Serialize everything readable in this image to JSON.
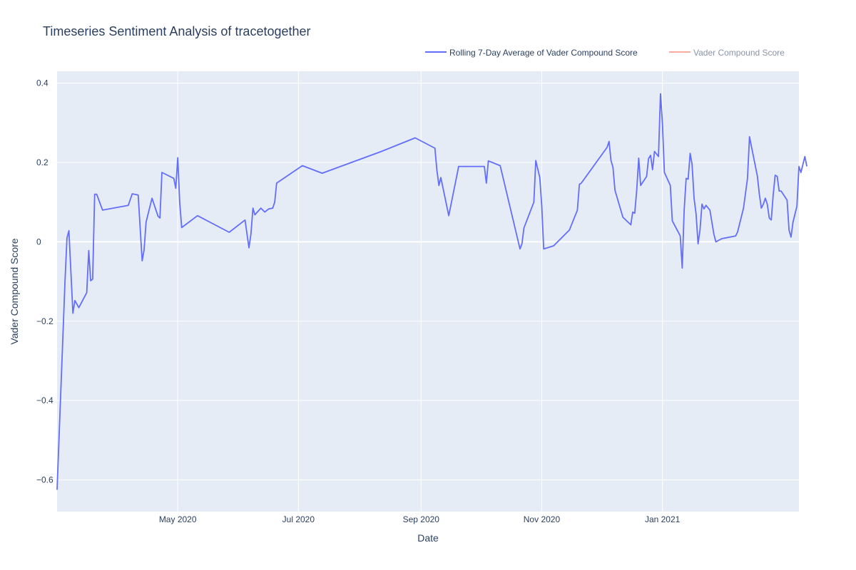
{
  "chart_data": {
    "type": "line",
    "title": "Timeseries Sentiment Analysis of tracetogether",
    "xlabel": "Date",
    "ylabel": "Vader Compound Score",
    "xlim": [
      "2020-03-01",
      "2021-03-11"
    ],
    "ylim": [
      -0.68,
      0.43
    ],
    "x_ticks": [
      {
        "date": "2020-05-01",
        "label": "May 2020"
      },
      {
        "date": "2020-07-01",
        "label": "Jul 2020"
      },
      {
        "date": "2020-09-01",
        "label": "Sep 2020"
      },
      {
        "date": "2020-11-01",
        "label": "Nov 2020"
      },
      {
        "date": "2021-01-01",
        "label": "Jan 2021"
      }
    ],
    "y_ticks": [
      {
        "value": 0.4,
        "label": "0.4"
      },
      {
        "value": 0.2,
        "label": "0.2"
      },
      {
        "value": 0,
        "label": "0"
      },
      {
        "value": -0.2,
        "label": "−0.2"
      },
      {
        "value": -0.4,
        "label": "−0.4"
      },
      {
        "value": -0.6,
        "label": "−0.6"
      }
    ],
    "grid": true,
    "legend_position": "top-right",
    "series": [
      {
        "name": "Rolling 7-Day Average of Vader Compound Score",
        "color": "#636efa",
        "visible": true,
        "points": [
          [
            "2020-03-01",
            -0.625
          ],
          [
            "2020-03-05",
            -0.1
          ],
          [
            "2020-03-06",
            0.01
          ],
          [
            "2020-03-07",
            0.028
          ],
          [
            "2020-03-09",
            -0.18
          ],
          [
            "2020-03-10",
            -0.148
          ],
          [
            "2020-03-12",
            -0.166
          ],
          [
            "2020-03-16",
            -0.128
          ],
          [
            "2020-03-17",
            -0.022
          ],
          [
            "2020-03-18",
            -0.098
          ],
          [
            "2020-03-19",
            -0.094
          ],
          [
            "2020-03-20",
            0.12
          ],
          [
            "2020-03-21",
            0.12
          ],
          [
            "2020-03-24",
            0.08
          ],
          [
            "2020-04-06",
            0.092
          ],
          [
            "2020-04-08",
            0.121
          ],
          [
            "2020-04-11",
            0.118
          ],
          [
            "2020-04-13",
            -0.048
          ],
          [
            "2020-04-14",
            -0.02
          ],
          [
            "2020-04-15",
            0.05
          ],
          [
            "2020-04-18",
            0.11
          ],
          [
            "2020-04-21",
            0.065
          ],
          [
            "2020-04-22",
            0.06
          ],
          [
            "2020-04-23",
            0.175
          ],
          [
            "2020-04-29",
            0.16
          ],
          [
            "2020-04-30",
            0.135
          ],
          [
            "2020-05-01",
            0.212
          ],
          [
            "2020-05-02",
            0.1
          ],
          [
            "2020-05-03",
            0.036
          ],
          [
            "2020-05-11",
            0.066
          ],
          [
            "2020-05-27",
            0.024
          ],
          [
            "2020-06-04",
            0.055
          ],
          [
            "2020-06-06",
            -0.015
          ],
          [
            "2020-06-07",
            0.02
          ],
          [
            "2020-06-08",
            0.085
          ],
          [
            "2020-06-09",
            0.068
          ],
          [
            "2020-06-12",
            0.085
          ],
          [
            "2020-06-14",
            0.075
          ],
          [
            "2020-06-16",
            0.083
          ],
          [
            "2020-06-18",
            0.085
          ],
          [
            "2020-06-19",
            0.1
          ],
          [
            "2020-06-20",
            0.148
          ],
          [
            "2020-07-03",
            0.192
          ],
          [
            "2020-07-13",
            0.173
          ],
          [
            "2020-08-12",
            0.228
          ],
          [
            "2020-08-29",
            0.262
          ],
          [
            "2020-09-08",
            0.236
          ],
          [
            "2020-09-09",
            0.18
          ],
          [
            "2020-09-10",
            0.142
          ],
          [
            "2020-09-11",
            0.162
          ],
          [
            "2020-09-15",
            0.066
          ],
          [
            "2020-09-20",
            0.19
          ],
          [
            "2020-10-03",
            0.19
          ],
          [
            "2020-10-04",
            0.148
          ],
          [
            "2020-10-05",
            0.204
          ],
          [
            "2020-10-11",
            0.192
          ],
          [
            "2020-10-21",
            -0.018
          ],
          [
            "2020-10-22",
            -0.005
          ],
          [
            "2020-10-23",
            0.035
          ],
          [
            "2020-10-28",
            0.1
          ],
          [
            "2020-10-29",
            0.205
          ],
          [
            "2020-10-31",
            0.162
          ],
          [
            "2020-11-01",
            0.09
          ],
          [
            "2020-11-02",
            -0.018
          ],
          [
            "2020-11-07",
            -0.01
          ],
          [
            "2020-11-15",
            0.03
          ],
          [
            "2020-11-19",
            0.08
          ],
          [
            "2020-11-20",
            0.145
          ],
          [
            "2020-11-21",
            0.148
          ],
          [
            "2020-12-04",
            0.238
          ],
          [
            "2020-12-05",
            0.253
          ],
          [
            "2020-12-06",
            0.205
          ],
          [
            "2020-12-07",
            0.188
          ],
          [
            "2020-12-08",
            0.13
          ],
          [
            "2020-12-12",
            0.062
          ],
          [
            "2020-12-16",
            0.043
          ],
          [
            "2020-12-17",
            0.075
          ],
          [
            "2020-12-18",
            0.072
          ],
          [
            "2020-12-19",
            0.13
          ],
          [
            "2020-12-20",
            0.211
          ],
          [
            "2020-12-21",
            0.142
          ],
          [
            "2020-12-24",
            0.165
          ],
          [
            "2020-12-25",
            0.21
          ],
          [
            "2020-12-26",
            0.218
          ],
          [
            "2020-12-27",
            0.182
          ],
          [
            "2020-12-28",
            0.228
          ],
          [
            "2020-12-30",
            0.215
          ],
          [
            "2020-12-31",
            0.373
          ],
          [
            "2021-01-01",
            0.3
          ],
          [
            "2021-01-02",
            0.175
          ],
          [
            "2021-01-05",
            0.142
          ],
          [
            "2021-01-06",
            0.053
          ],
          [
            "2021-01-10",
            0.015
          ],
          [
            "2021-01-11",
            -0.066
          ],
          [
            "2021-01-12",
            0.08
          ],
          [
            "2021-01-13",
            0.16
          ],
          [
            "2021-01-14",
            0.158
          ],
          [
            "2021-01-15",
            0.223
          ],
          [
            "2021-01-16",
            0.195
          ],
          [
            "2021-01-17",
            0.11
          ],
          [
            "2021-01-18",
            0.07
          ],
          [
            "2021-01-19",
            -0.005
          ],
          [
            "2021-01-20",
            0.03
          ],
          [
            "2021-01-21",
            0.095
          ],
          [
            "2021-01-22",
            0.083
          ],
          [
            "2021-01-23",
            0.092
          ],
          [
            "2021-01-25",
            0.08
          ],
          [
            "2021-01-27",
            0.02
          ],
          [
            "2021-01-28",
            0.0
          ],
          [
            "2021-01-31",
            0.008
          ],
          [
            "2021-02-07",
            0.015
          ],
          [
            "2021-02-08",
            0.025
          ],
          [
            "2021-02-11",
            0.085
          ],
          [
            "2021-02-13",
            0.16
          ],
          [
            "2021-02-14",
            0.265
          ],
          [
            "2021-02-18",
            0.165
          ],
          [
            "2021-02-19",
            0.12
          ],
          [
            "2021-02-20",
            0.085
          ],
          [
            "2021-02-21",
            0.095
          ],
          [
            "2021-02-22",
            0.11
          ],
          [
            "2021-02-23",
            0.095
          ],
          [
            "2021-02-24",
            0.06
          ],
          [
            "2021-02-25",
            0.055
          ],
          [
            "2021-02-26",
            0.118
          ],
          [
            "2021-02-27",
            0.168
          ],
          [
            "2021-02-28",
            0.165
          ],
          [
            "2021-03-01",
            0.128
          ],
          [
            "2021-03-02",
            0.128
          ],
          [
            "2021-03-05",
            0.105
          ],
          [
            "2021-03-06",
            0.03
          ],
          [
            "2021-03-07",
            0.012
          ],
          [
            "2021-03-08",
            0.05
          ],
          [
            "2021-03-09",
            0.07
          ],
          [
            "2021-03-10",
            0.09
          ],
          [
            "2021-03-11",
            0.19
          ],
          [
            "2021-03-12",
            0.175
          ],
          [
            "2021-03-14",
            0.215
          ],
          [
            "2021-03-15",
            0.19
          ]
        ]
      },
      {
        "name": "Vader Compound Score",
        "color": "#ef553b",
        "visible": false,
        "points": []
      }
    ]
  }
}
